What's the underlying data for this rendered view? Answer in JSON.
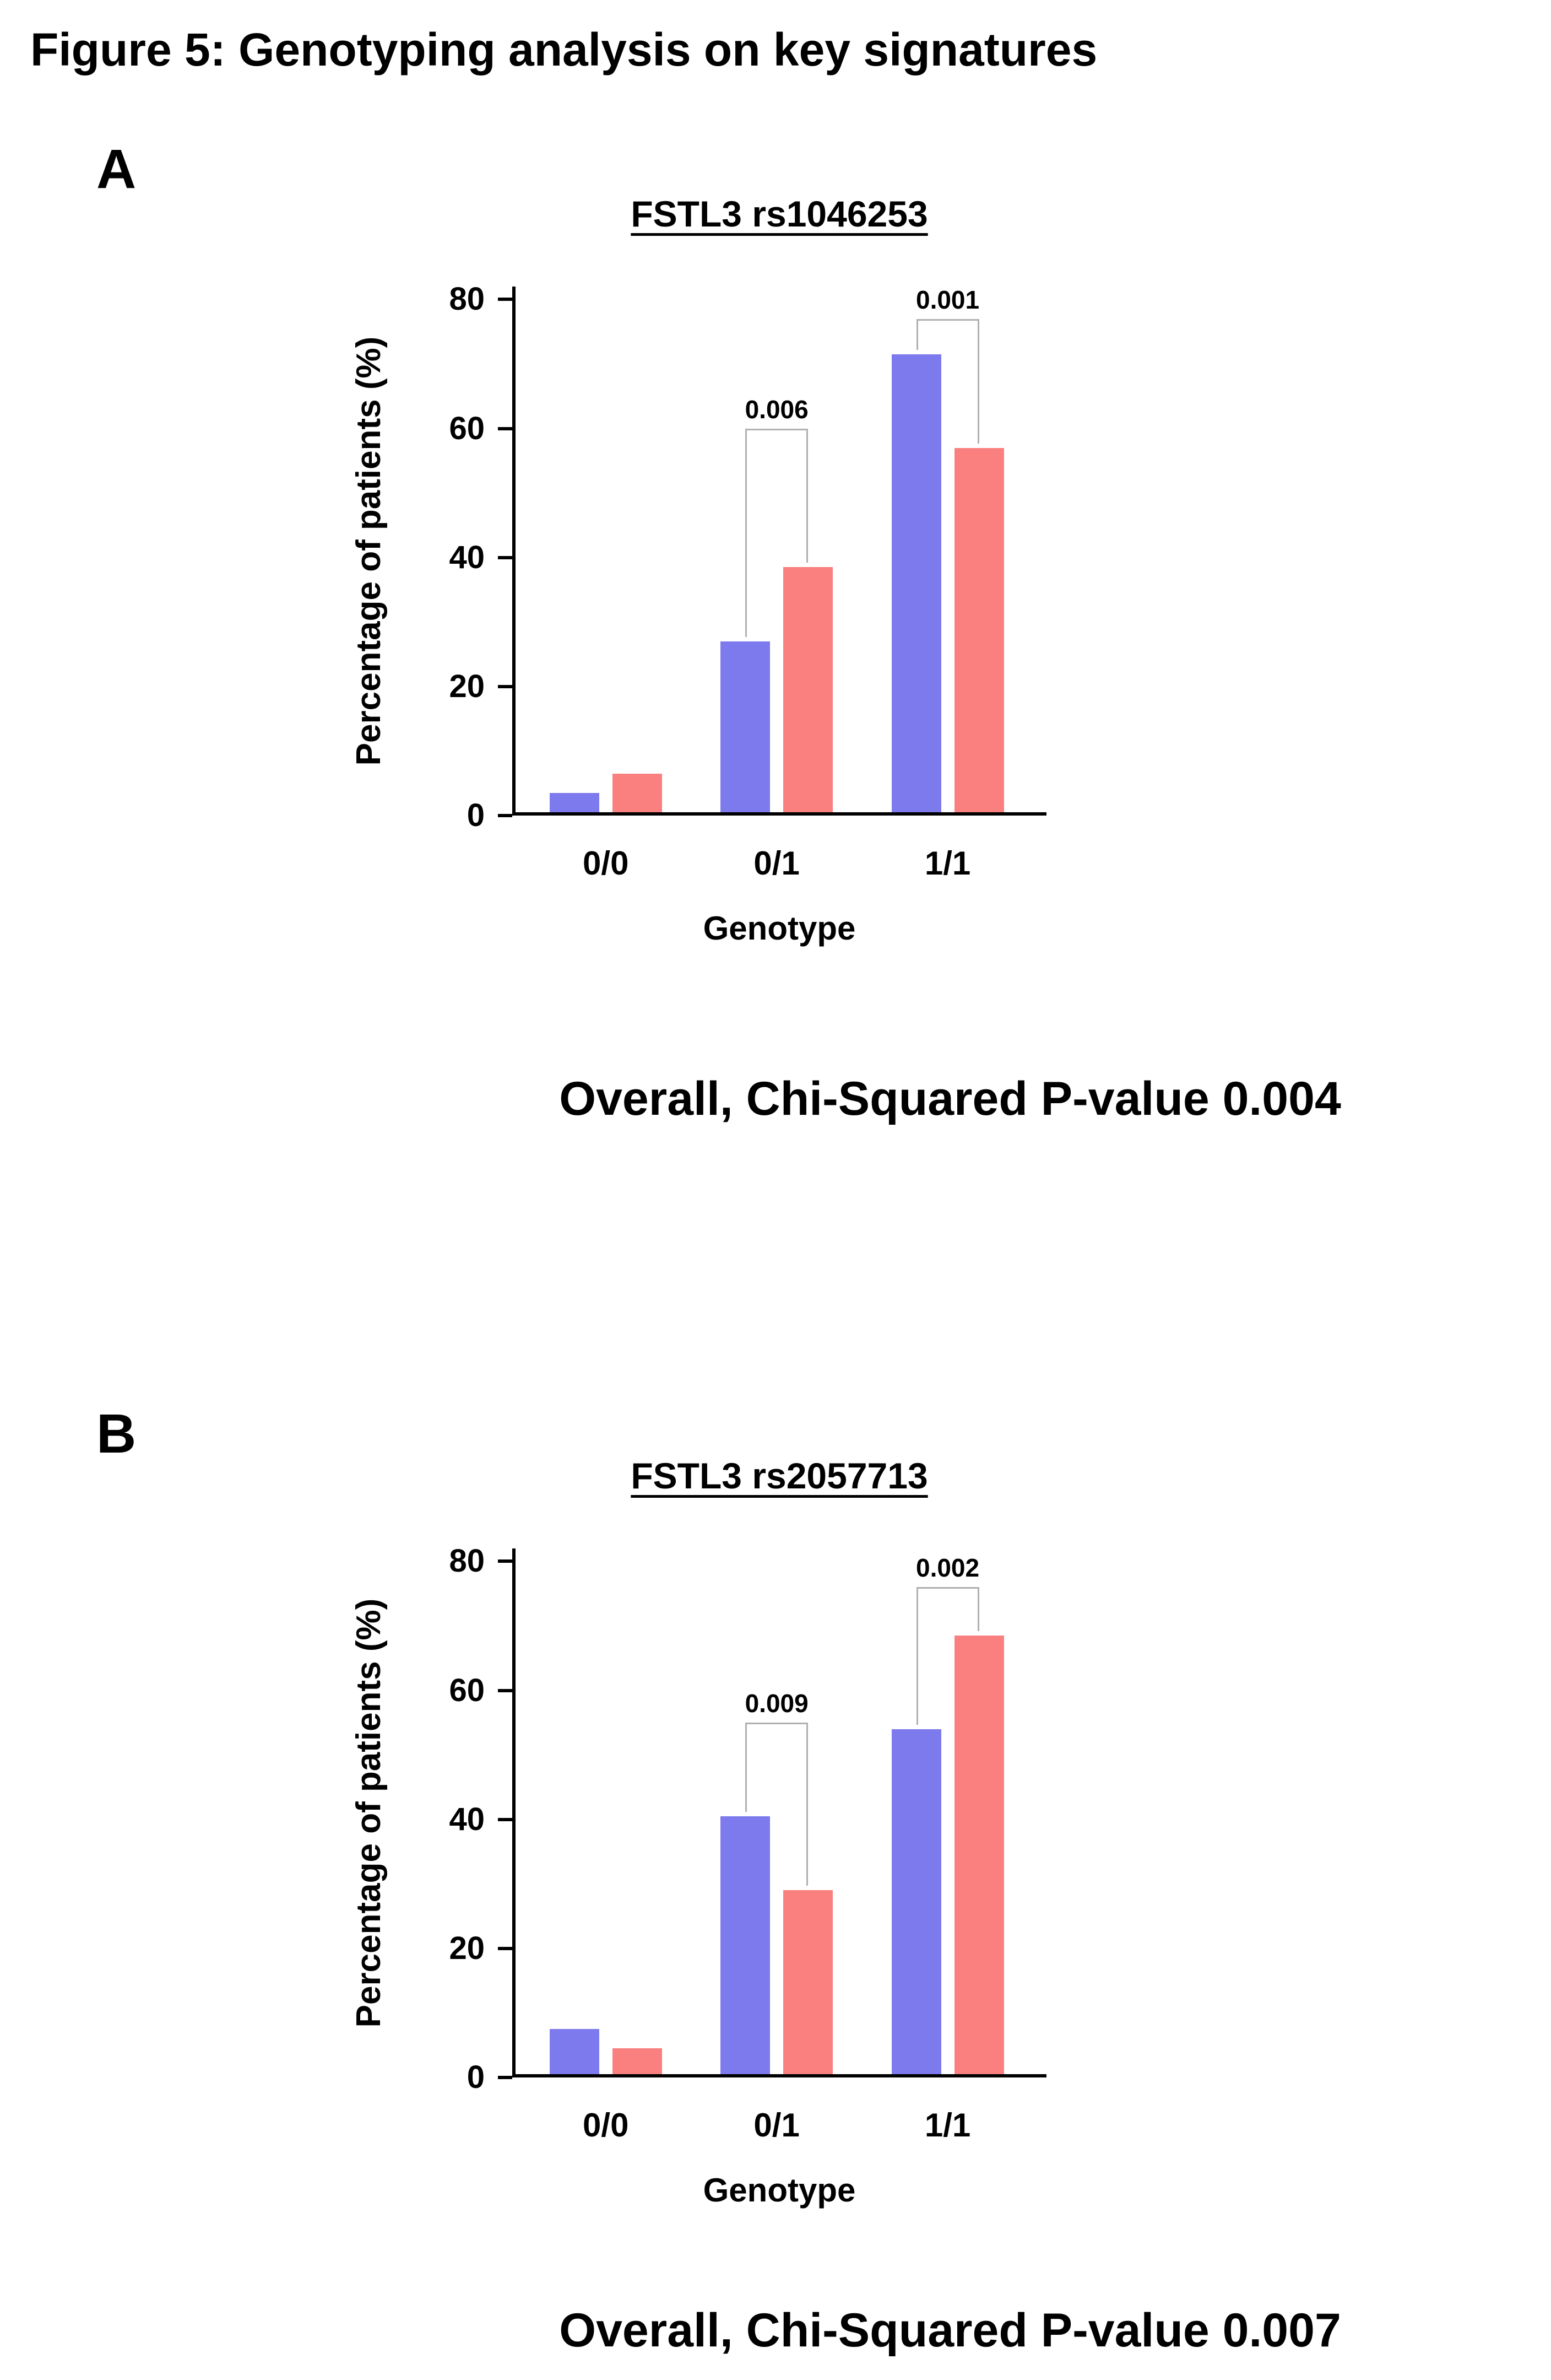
{
  "figure_title": "Figure 5: Genotyping analysis on key signatures",
  "panels": [
    {
      "label": "A",
      "caption": "Overall, Chi-Squared P-value 0.004"
    },
    {
      "label": "B",
      "caption": "Overall, Chi-Squared P-value 0.007"
    }
  ],
  "colors": {
    "series_blue": "#7d7aed",
    "series_red": "#fa8080",
    "axis": "#000000",
    "bracket": "#b0b0b0",
    "background": "#ffffff"
  },
  "chart_data": [
    {
      "type": "bar",
      "title": "FSTL3 rs1046253",
      "xlabel": "Genotype",
      "ylabel": "Percentage of patients (%)",
      "categories": [
        "0/0",
        "0/1",
        "1/1"
      ],
      "series": [
        {
          "name": "blue",
          "color": "#7d7aed",
          "values": [
            3,
            26.5,
            71
          ]
        },
        {
          "name": "red",
          "color": "#fa8080",
          "values": [
            6,
            38,
            56.5
          ]
        }
      ],
      "yticks": [
        0,
        20,
        40,
        60,
        80
      ],
      "ylim": [
        0,
        80
      ],
      "grid": false,
      "legend": "none",
      "significance": [
        {
          "category": "0/1",
          "p_value": "0.006",
          "line_y": 60
        },
        {
          "category": "1/1",
          "p_value": "0.001",
          "line_y": 77
        }
      ]
    },
    {
      "type": "bar",
      "title": "FSTL3 rs2057713",
      "xlabel": "Genotype",
      "ylabel": "Percentage of patients (%)",
      "categories": [
        "0/0",
        "0/1",
        "1/1"
      ],
      "series": [
        {
          "name": "blue",
          "color": "#7d7aed",
          "values": [
            7,
            40,
            53.5
          ]
        },
        {
          "name": "red",
          "color": "#fa8080",
          "values": [
            4,
            28.5,
            68
          ]
        }
      ],
      "yticks": [
        0,
        20,
        40,
        60,
        80
      ],
      "ylim": [
        0,
        80
      ],
      "grid": false,
      "legend": "none",
      "significance": [
        {
          "category": "0/1",
          "p_value": "0.009",
          "line_y": 55
        },
        {
          "category": "1/1",
          "p_value": "0.002",
          "line_y": 76
        }
      ]
    }
  ]
}
